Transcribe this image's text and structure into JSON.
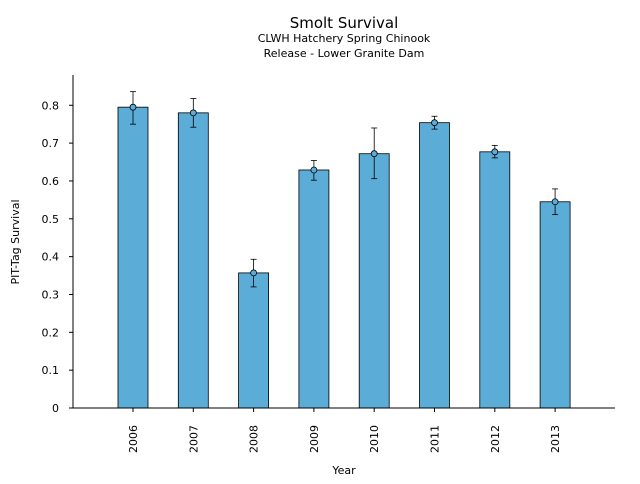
{
  "chart_data": {
    "type": "bar",
    "title": "Smolt Survival",
    "subtitle_lines": [
      "CLWH Hatchery Spring Chinook",
      "Release - Lower Granite Dam"
    ],
    "xlabel": "Year",
    "ylabel": "PIT-Tag Survival",
    "categories": [
      "2006",
      "2007",
      "2008",
      "2009",
      "2010",
      "2011",
      "2012",
      "2013"
    ],
    "values": [
      0.795,
      0.78,
      0.357,
      0.629,
      0.672,
      0.754,
      0.677,
      0.545
    ],
    "error_lower": [
      0.75,
      0.742,
      0.32,
      0.602,
      0.606,
      0.737,
      0.661,
      0.511
    ],
    "error_upper": [
      0.836,
      0.818,
      0.393,
      0.654,
      0.74,
      0.771,
      0.694,
      0.579
    ],
    "ylim": [
      0,
      0.88
    ],
    "yticks": [
      0,
      0.1,
      0.2,
      0.3,
      0.4,
      0.5,
      0.6,
      0.7,
      0.8
    ],
    "ytick_labels": [
      "0",
      "0.1",
      "0.2",
      "0.3",
      "0.4",
      "0.5",
      "0.6",
      "0.7",
      "0.8"
    ],
    "grid": false,
    "colors": {
      "bar_fill": "#5bacd6",
      "bar_edge": "#000000",
      "axis": "#000000",
      "marker_fill": "#5bacd6"
    }
  }
}
